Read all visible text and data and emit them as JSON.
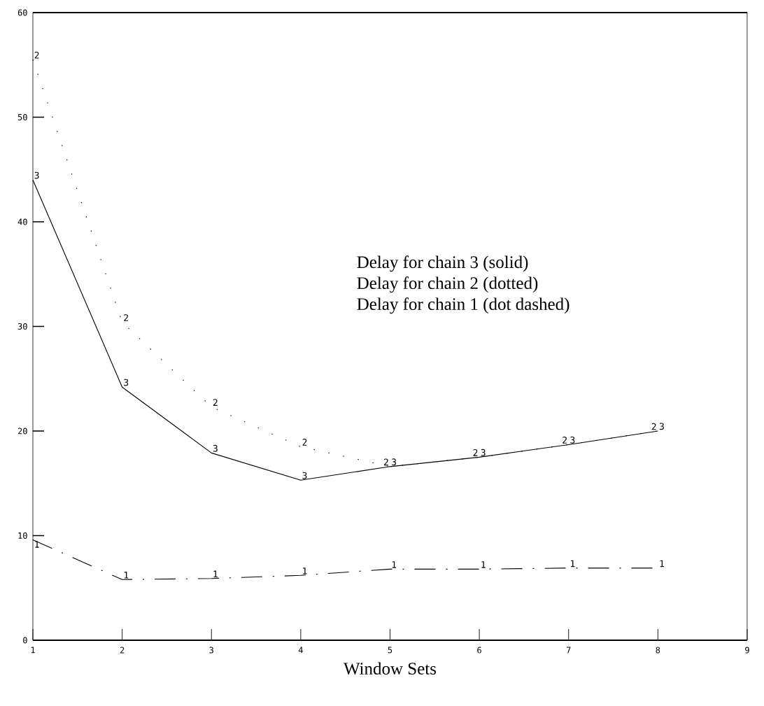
{
  "chart_data": {
    "type": "line",
    "xlabel": "Window Sets",
    "x": [
      1,
      2,
      3,
      4,
      5,
      6,
      7,
      8
    ],
    "xlim": [
      1,
      9
    ],
    "ylim": [
      0,
      60
    ],
    "xticks": [
      1,
      2,
      3,
      4,
      5,
      6,
      7,
      8,
      9
    ],
    "yticks": [
      0,
      10,
      20,
      30,
      40,
      50,
      60
    ],
    "marker": "none",
    "series": [
      {
        "color": "#000000",
        "line_style": "solid",
        "values": [
          44,
          24.2,
          17.9,
          15.3,
          16.6,
          17.5,
          18.7,
          20
        ]
      },
      {
        "color": "#000000",
        "line_style": "dotted",
        "values": [
          55.5,
          30.4,
          22.3,
          18.5,
          16.6,
          17.5,
          18.7,
          20
        ]
      },
      {
        "color": "#000000",
        "line_style": "dashdot",
        "values": [
          9.6,
          5.8,
          5.9,
          6.2,
          6.8,
          6.8,
          6.9,
          6.9
        ]
      }
    ],
    "annotations": [
      "Delay for chain 3 (solid)",
      "Delay for chain 2 (dotted)",
      "Delay for chain 1 (dot dashed)",
      {
        "text": "3",
        "x": 1,
        "y": 44
      },
      {
        "text": "3",
        "x": 2,
        "y": 24.2
      },
      {
        "text": "3",
        "x": 3,
        "y": 17.9
      },
      {
        "text": "3",
        "x": 4,
        "y": 15.3
      },
      {
        "text": "3",
        "x": 5,
        "y": 16.6
      },
      {
        "text": "3",
        "x": 6,
        "y": 17.5
      },
      {
        "text": "3",
        "x": 7,
        "y": 18.7
      },
      {
        "text": "3",
        "x": 8,
        "y": 20
      },
      {
        "text": "2",
        "x": 1,
        "y": 55.5
      },
      {
        "text": "2",
        "x": 2,
        "y": 30.4
      },
      {
        "text": "2",
        "x": 3,
        "y": 22.3
      },
      {
        "text": "2",
        "x": 4,
        "y": 18.5
      },
      {
        "text": "2",
        "x": 5,
        "y": 16.6
      },
      {
        "text": "2",
        "x": 6,
        "y": 17.5
      },
      {
        "text": "2",
        "x": 7,
        "y": 18.7
      },
      {
        "text": "2",
        "x": 8,
        "y": 20
      },
      {
        "text": "1",
        "x": 1,
        "y": 9.6
      },
      {
        "text": "1",
        "x": 2,
        "y": 5.8
      },
      {
        "text": "1",
        "x": 3,
        "y": 5.9
      },
      {
        "text": "1",
        "x": 4,
        "y": 6.2
      },
      {
        "text": "1",
        "x": 5,
        "y": 6.8
      },
      {
        "text": "1",
        "x": 6,
        "y": 6.8
      },
      {
        "text": "1",
        "x": 7,
        "y": 6.9
      },
      {
        "text": "1",
        "x": 8,
        "y": 6.9
      }
    ]
  }
}
